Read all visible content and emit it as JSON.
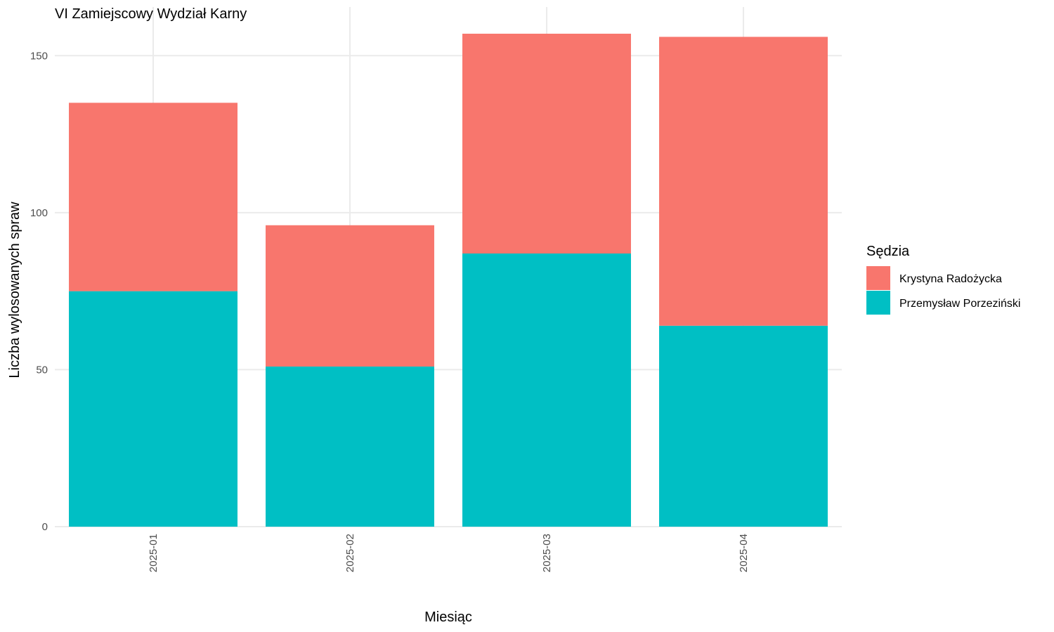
{
  "chart_data": {
    "type": "bar",
    "stacked": true,
    "title": "VI Zamiejscowy Wydział Karny",
    "xlabel": "Miesiąc",
    "ylabel": "Liczba wylosowanych spraw",
    "categories": [
      "2025-01",
      "2025-02",
      "2025-03",
      "2025-04"
    ],
    "series": [
      {
        "name": "Przemysław Porzeziński",
        "color": "#00BFC4",
        "values": [
          75,
          51,
          87,
          64
        ]
      },
      {
        "name": "Krystyna Radożycka",
        "color": "#F8766D",
        "values": [
          60,
          45,
          70,
          92
        ]
      }
    ],
    "ylim": [
      0,
      160
    ],
    "yticks": [
      0,
      50,
      100,
      150
    ],
    "grid": true,
    "legend": {
      "title": "Sędzia",
      "placement": "right",
      "order": [
        "Krystyna Radożycka",
        "Przemysław Porzeziński"
      ]
    }
  }
}
